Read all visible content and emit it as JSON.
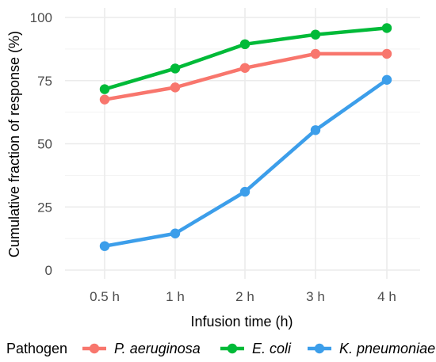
{
  "chart_data": {
    "type": "line",
    "title": "",
    "xlabel": "Infusion time (h)",
    "ylabel": "Cumulative fraction of response (%)",
    "categories": [
      "0.5 h",
      "1 h",
      "2 h",
      "3 h",
      "4 h"
    ],
    "ylim": [
      0,
      100
    ],
    "yticks": [
      0,
      25,
      50,
      75,
      100
    ],
    "grid": true,
    "legend": {
      "title": "Pathogen",
      "position": "bottom"
    },
    "series": [
      {
        "name": "P. aeruginosa",
        "color": "#F8766D",
        "values": [
          67.5,
          72.3,
          80,
          85.6,
          85.6
        ]
      },
      {
        "name": "E. coli",
        "color": "#00BA38",
        "values": [
          71.6,
          79.8,
          89.4,
          93.2,
          95.8
        ]
      },
      {
        "name": "K. pneumoniae",
        "color": "#3C9EEA",
        "values": [
          9.5,
          14.5,
          31,
          55.4,
          75.3
        ]
      }
    ]
  }
}
